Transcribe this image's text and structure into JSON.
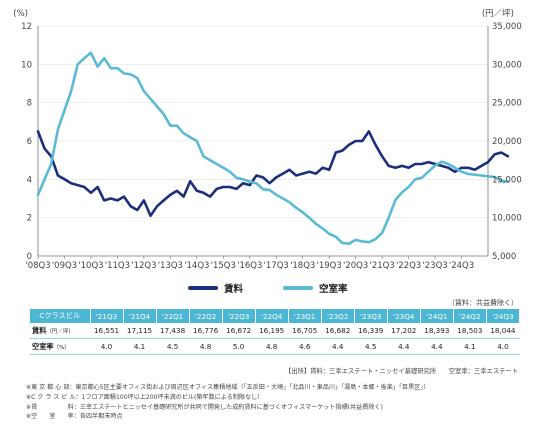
{
  "chart_data": {
    "type": "line",
    "title": "",
    "left_axis": {
      "unit": "(%)",
      "ylim": [
        0,
        12
      ],
      "ticks": [
        "0",
        "2",
        "4",
        "6",
        "8",
        "10",
        "12"
      ]
    },
    "right_axis": {
      "unit": "(円／坪)",
      "ylim": [
        5000,
        35000
      ],
      "ticks": [
        "5,000",
        "10,000",
        "15,000",
        "20,000",
        "25,000",
        "30,000",
        "35,000"
      ]
    },
    "x_ticks": [
      "'08Q3",
      "'09Q3",
      "'10Q3",
      "'11Q3",
      "'12Q3",
      "'13Q3",
      "'14Q3",
      "'15Q3",
      "'16Q3",
      "'17Q3",
      "'18Q3",
      "'19Q3",
      "'20Q3",
      "'21Q3",
      "'22Q3",
      "'23Q3",
      "'24Q3"
    ],
    "x_start": "2008Q3",
    "series": [
      {
        "name": "賃料",
        "axis": "left",
        "color": "#1c2f7c",
        "values": [
          6.5,
          5.6,
          5.2,
          4.2,
          4.0,
          3.8,
          3.7,
          3.6,
          3.3,
          3.6,
          2.9,
          3.0,
          2.9,
          3.1,
          2.6,
          2.4,
          2.9,
          2.1,
          2.6,
          2.9,
          3.2,
          3.4,
          3.1,
          3.9,
          3.4,
          3.3,
          3.1,
          3.5,
          3.6,
          3.6,
          3.5,
          3.8,
          3.7,
          4.2,
          4.1,
          3.8,
          4.1,
          4.3,
          4.5,
          4.2,
          4.3,
          4.4,
          4.3,
          4.6,
          4.5,
          5.4,
          5.5,
          5.8,
          6.0,
          6.0,
          6.5,
          5.8,
          5.2,
          4.7,
          4.6,
          4.7,
          4.6,
          4.8,
          4.8,
          4.9,
          4.8,
          4.7,
          4.6,
          4.4,
          4.6,
          4.6,
          4.5,
          4.7,
          4.9,
          5.3,
          5.4,
          5.2
        ]
      },
      {
        "name": "空室率",
        "axis": "right",
        "color": "#5bb9d5",
        "values": [
          13000,
          15000,
          17000,
          21500,
          24000,
          26500,
          30000,
          30800,
          31500,
          29700,
          30800,
          29500,
          29500,
          28800,
          28700,
          28200,
          26500,
          25500,
          24500,
          23500,
          22000,
          22000,
          21000,
          20500,
          20000,
          18000,
          17500,
          17000,
          16500,
          16000,
          15200,
          15000,
          14700,
          14500,
          13700,
          13600,
          13000,
          12500,
          12000,
          11300,
          10700,
          10000,
          9200,
          8600,
          7900,
          7500,
          6700,
          6600,
          7100,
          6900,
          6800,
          7200,
          8000,
          10000,
          12300,
          13300,
          14000,
          15000,
          15200,
          16000,
          16800,
          17300,
          17000,
          16500,
          16000,
          15700,
          15600,
          15500,
          15400,
          15300,
          14800,
          14700
        ]
      }
    ],
    "legend": {
      "placement": "bottom",
      "items": [
        "賃料",
        "空室率"
      ]
    }
  },
  "table": {
    "unit_note": "（賃料：共益費除く）",
    "corner": "Cクラスビル",
    "quarters": [
      "'21Q3",
      "'21Q4",
      "'22Q1",
      "'22Q2",
      "'22Q3",
      "'22Q4",
      "'23Q1",
      "'23Q2",
      "'23Q3",
      "'23Q4",
      "'24Q1",
      "'24Q2",
      "'24Q3"
    ],
    "rent_label": "賃料",
    "rent_unit": "（円／坪）",
    "rent": [
      "16,551",
      "17,115",
      "17,438",
      "16,776",
      "16,672",
      "16,195",
      "16,705",
      "16,682",
      "16,339",
      "17,202",
      "18,393",
      "18,503",
      "18,044"
    ],
    "vacancy_label": "空室率",
    "vacancy_unit": "（%）",
    "vacancy": [
      "4.0",
      "4.1",
      "4.5",
      "4.8",
      "5.0",
      "4.8",
      "4.6",
      "4.4",
      "4.5",
      "4.4",
      "4.4",
      "4.1",
      "4.0"
    ]
  },
  "source": "【出所】賃料：三幸エステート・ニッセイ基礎研究所　　空室率：三幸エステート",
  "notes": [
    "※東 京 都 心 部：東京都心5区主要オフィス街および周辺区オフィス集積地域（「五反田・大崎」「北品川・東品川」「湯島・本郷・後楽」「目黒区」）",
    "※C ク ラ ス ビ ル：1フロア面積100坪以上200坪未満のビル(築年数による制限なし）",
    "※賃　　　　　料：三幸エステートとニッセイ基礎研究所が共同で開発した成約賃料に基づくオフィスマーケット指標(共益費除く)",
    "※空　　室　　率：各四半期末時点"
  ]
}
